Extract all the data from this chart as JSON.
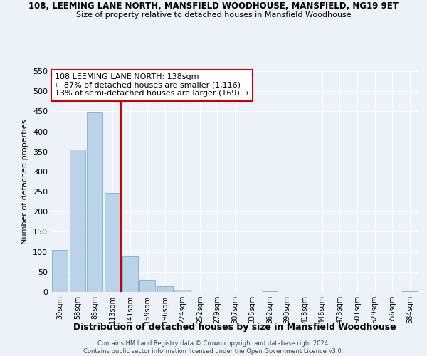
{
  "title": "108, LEEMING LANE NORTH, MANSFIELD WOODHOUSE, MANSFIELD, NG19 9ET",
  "subtitle": "Size of property relative to detached houses in Mansfield Woodhouse",
  "xlabel": "Distribution of detached houses by size in Mansfield Woodhouse",
  "ylabel": "Number of detached properties",
  "bar_labels": [
    "30sqm",
    "58sqm",
    "85sqm",
    "113sqm",
    "141sqm",
    "169sqm",
    "196sqm",
    "224sqm",
    "252sqm",
    "279sqm",
    "307sqm",
    "335sqm",
    "362sqm",
    "390sqm",
    "418sqm",
    "446sqm",
    "473sqm",
    "501sqm",
    "529sqm",
    "556sqm",
    "584sqm"
  ],
  "bar_values": [
    104,
    354,
    447,
    247,
    89,
    31,
    14,
    6,
    0,
    0,
    0,
    0,
    2,
    0,
    0,
    0,
    0,
    0,
    0,
    0,
    2
  ],
  "bar_color": "#bad3e8",
  "bar_edge_color": "#7aafd4",
  "annotation_text_line1": "108 LEEMING LANE NORTH: 138sqm",
  "annotation_text_line2": "← 87% of detached houses are smaller (1,116)",
  "annotation_text_line3": "13% of semi-detached houses are larger (169) →",
  "annotation_box_facecolor": "#ffffff",
  "annotation_box_edgecolor": "#cc0000",
  "vline_color": "#cc0000",
  "vline_x_index": 3.5,
  "ylim": [
    0,
    550
  ],
  "yticks": [
    0,
    50,
    100,
    150,
    200,
    250,
    300,
    350,
    400,
    450,
    500,
    550
  ],
  "footer1": "Contains HM Land Registry data © Crown copyright and database right 2024.",
  "footer2": "Contains public sector information licensed under the Open Government Licence v3.0.",
  "bg_color": "#edf2f9",
  "grid_color": "#ffffff"
}
